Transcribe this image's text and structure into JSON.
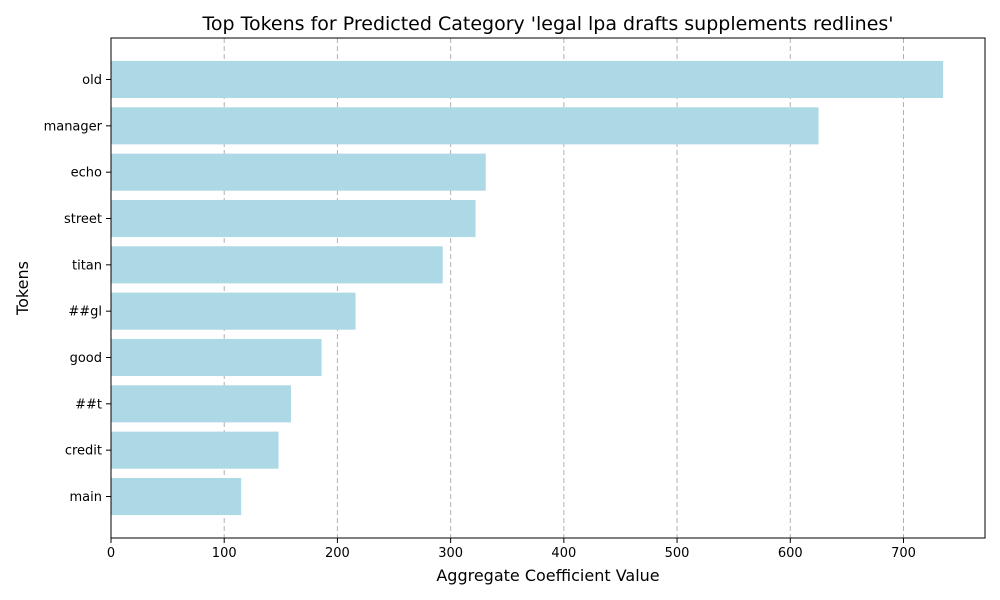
{
  "chart_data": {
    "type": "bar",
    "orientation": "horizontal",
    "title": "Top Tokens for Predicted Category 'legal lpa drafts supplements redlines'",
    "xlabel": "Aggregate Coefficient Value",
    "ylabel": "Tokens",
    "categories": [
      "old",
      "manager",
      "echo",
      "street",
      "titan",
      "##gl",
      "good",
      "##t",
      "credit",
      "main"
    ],
    "values": [
      735,
      625,
      331,
      322,
      293,
      216,
      186,
      159,
      148,
      115
    ],
    "xlim": [
      0,
      772
    ],
    "xticks": [
      0,
      100,
      200,
      300,
      400,
      500,
      600,
      700
    ],
    "grid": "x-dashed",
    "bar_color": "#add8e6"
  }
}
